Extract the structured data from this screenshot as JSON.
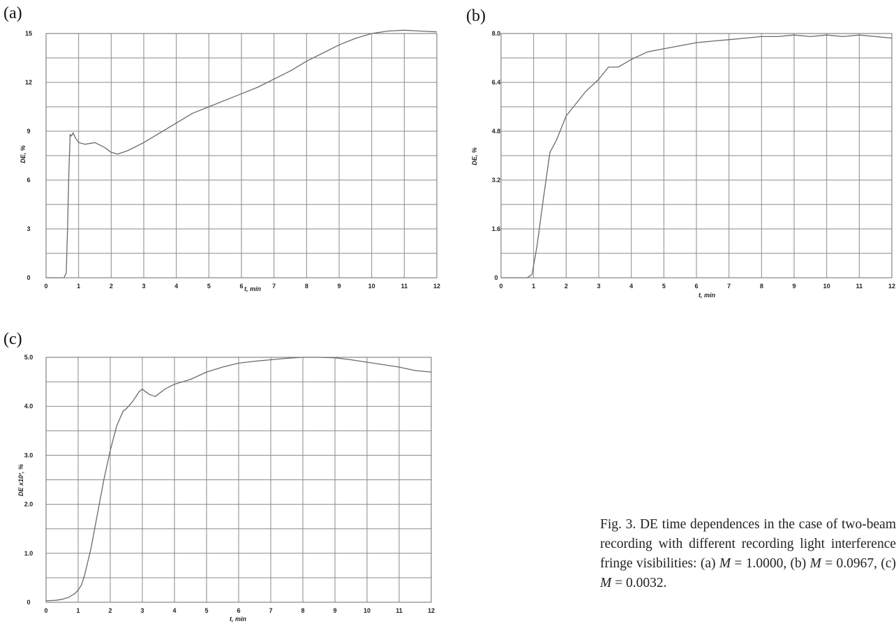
{
  "chart_data": [
    {
      "type": "line",
      "panel_label": "(a)",
      "xlabel": "t, min",
      "ylabel": "DE, %",
      "xlim": [
        0,
        12
      ],
      "ylim": [
        0,
        15
      ],
      "xticks": [
        "0",
        "1",
        "2",
        "3",
        "4",
        "5",
        "6",
        "7",
        "8",
        "9",
        "10",
        "11",
        "12"
      ],
      "yticks": [
        "0",
        "3",
        "6",
        "9",
        "12",
        "15"
      ],
      "grid": true,
      "series": [
        {
          "x": [
            0,
            0.55,
            0.62,
            0.66,
            0.7,
            0.74,
            0.78,
            0.83,
            0.9,
            1.0,
            1.2,
            1.5,
            1.8,
            2.0,
            2.2,
            2.5,
            3.0,
            3.5,
            4.0,
            4.5,
            5.0,
            5.5,
            6.0,
            6.5,
            7.0,
            7.5,
            8.0,
            8.5,
            9.0,
            9.5,
            10.0,
            10.5,
            11.0,
            11.5,
            12.0
          ],
          "y": [
            0,
            0,
            0.3,
            3.0,
            6.5,
            8.8,
            8.7,
            8.9,
            8.6,
            8.3,
            8.2,
            8.3,
            8.0,
            7.7,
            7.6,
            7.8,
            8.3,
            8.9,
            9.5,
            10.1,
            10.5,
            10.9,
            11.3,
            11.7,
            12.2,
            12.7,
            13.3,
            13.8,
            14.3,
            14.7,
            15.0,
            15.15,
            15.2,
            15.15,
            15.1
          ]
        }
      ]
    },
    {
      "type": "line",
      "panel_label": "(b)",
      "xlabel": "t, min",
      "ylabel": "DE, %",
      "xlim": [
        0,
        12
      ],
      "ylim": [
        0,
        8.0
      ],
      "xticks": [
        "0",
        "1",
        "2",
        "3",
        "4",
        "5",
        "6",
        "7",
        "8",
        "9",
        "10",
        "11",
        "12"
      ],
      "yticks": [
        "0",
        "1.6",
        "3.2",
        "4.8",
        "6.4",
        "8.0"
      ],
      "grid": true,
      "series": [
        {
          "x": [
            0,
            0.8,
            0.95,
            1.1,
            1.3,
            1.5,
            1.7,
            2.0,
            2.3,
            2.6,
            3.0,
            3.3,
            3.6,
            4.0,
            4.5,
            5.0,
            5.5,
            6.0,
            6.5,
            7.0,
            7.5,
            8.0,
            8.5,
            9.0,
            9.5,
            10.0,
            10.5,
            11.0,
            11.5,
            12.0
          ],
          "y": [
            0,
            0,
            0.1,
            1.0,
            2.6,
            4.1,
            4.5,
            5.3,
            5.7,
            6.1,
            6.5,
            6.9,
            6.9,
            7.15,
            7.4,
            7.5,
            7.6,
            7.7,
            7.75,
            7.8,
            7.85,
            7.9,
            7.9,
            7.95,
            7.9,
            7.95,
            7.9,
            7.95,
            7.9,
            7.85
          ]
        }
      ]
    },
    {
      "type": "line",
      "panel_label": "(c)",
      "xlabel": "t, min",
      "ylabel": "DE x10², %",
      "xlim": [
        0,
        12
      ],
      "ylim": [
        0,
        5.0
      ],
      "xticks": [
        "0",
        "1",
        "2",
        "3",
        "4",
        "5",
        "6",
        "7",
        "8",
        "9",
        "10",
        "11",
        "12"
      ],
      "yticks": [
        "0",
        "1.0",
        "2.0",
        "3.0",
        "4.0",
        "5.0"
      ],
      "grid": true,
      "series": [
        {
          "x": [
            0,
            0.3,
            0.5,
            0.7,
            0.9,
            1.0,
            1.1,
            1.2,
            1.4,
            1.6,
            1.8,
            2.0,
            2.2,
            2.4,
            2.5,
            2.7,
            2.9,
            3.0,
            3.2,
            3.4,
            3.7,
            4.0,
            4.5,
            5.0,
            5.5,
            6.0,
            6.5,
            7.0,
            7.5,
            8.0,
            8.5,
            9.0,
            9.5,
            10.0,
            10.5,
            11.0,
            11.5,
            12.0
          ],
          "y": [
            0.03,
            0.04,
            0.06,
            0.1,
            0.18,
            0.25,
            0.35,
            0.55,
            1.1,
            1.8,
            2.5,
            3.1,
            3.6,
            3.9,
            3.95,
            4.1,
            4.3,
            4.35,
            4.25,
            4.2,
            4.35,
            4.45,
            4.55,
            4.7,
            4.8,
            4.88,
            4.92,
            4.95,
            4.98,
            5.0,
            5.0,
            4.99,
            4.95,
            4.9,
            4.85,
            4.8,
            4.73,
            4.7
          ]
        }
      ]
    }
  ],
  "caption": {
    "text_1": "Fig. 3. DE time dependences in the case of two-beam recording with different recording light interference fringe visibilities: (a) ",
    "var_1": "M",
    "text_2": " = 1.0000, (b) ",
    "var_2": "M",
    "text_3": " = 0.0967, (c) ",
    "var_3": "M",
    "text_4": " = 0.0032."
  }
}
